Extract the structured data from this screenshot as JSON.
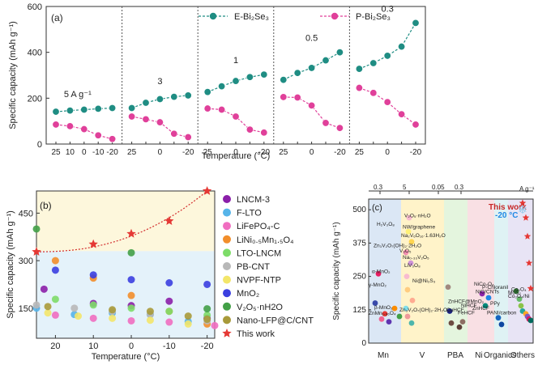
{
  "chart_data": [
    {
      "type": "scatter",
      "panel_label": "(a)",
      "ylabel": "Specific capacity  (mAh g⁻¹)",
      "xlabel": "Temperature  (°C)",
      "ylim": [
        0,
        600
      ],
      "yticks": [
        0,
        200,
        400,
        600
      ],
      "segments": [
        {
          "label": "5 A g⁻¹",
          "x": [
            "25",
            "10",
            "0",
            "-10",
            "-20"
          ],
          "e": [
            141,
            146,
            150,
            154,
            157
          ],
          "p": [
            85,
            78,
            65,
            38,
            22
          ]
        },
        {
          "label": "3",
          "x": [
            "25",
            "",
            "0",
            "",
            "-20"
          ],
          "e": [
            157,
            180,
            196,
            206,
            212
          ],
          "p": [
            120,
            108,
            95,
            45,
            30
          ]
        },
        {
          "label": "1",
          "x": [
            "25",
            "",
            "0",
            "",
            "-20"
          ],
          "e": [
            227,
            252,
            275,
            292,
            303
          ],
          "p": [
            155,
            150,
            120,
            63,
            50
          ]
        },
        {
          "label": "0.5",
          "x": [
            "25",
            "",
            "0",
            "",
            "-20"
          ],
          "e": [
            280,
            310,
            332,
            365,
            400
          ],
          "p": [
            205,
            203,
            168,
            92,
            70
          ]
        },
        {
          "label": "0.3",
          "x": [
            "25",
            "",
            "0",
            "",
            "-20"
          ],
          "e": [
            328,
            353,
            385,
            425,
            528
          ],
          "p": [
            245,
            223,
            183,
            130,
            85
          ]
        }
      ],
      "series": [
        {
          "name": "E-Bi₂Se₃",
          "color": "#1f8d83"
        },
        {
          "name": "P-Bi₂Se₃",
          "color": "#e0409a"
        }
      ]
    },
    {
      "type": "scatter",
      "panel_label": "(b)",
      "ylabel": "Specific capacity  (mAh g⁻¹)",
      "xlabel": "Temperature  (°C)",
      "xlim": [
        25,
        -22
      ],
      "xticks": [
        20,
        10,
        0,
        -10,
        -20
      ],
      "ylim": [
        55,
        520
      ],
      "yticks": [
        150,
        300,
        450
      ],
      "series": [
        {
          "name": "LNCM-3",
          "color": "#8b1fa9",
          "points": [
            [
              23,
              210
            ],
            [
              10,
              165
            ],
            [
              0,
              158
            ],
            [
              -10,
              172
            ],
            [
              -20,
              118
            ]
          ]
        },
        {
          "name": "F-LTO",
          "color": "#56b4e9",
          "points": [
            [
              25,
              150
            ],
            [
              15,
              130
            ],
            [
              5,
              135
            ],
            [
              -5,
              130
            ],
            [
              -15,
              108
            ]
          ]
        },
        {
          "name": "LiFePO₄-C",
          "color": "#f06ec0",
          "points": [
            [
              20,
              128
            ],
            [
              10,
              118
            ],
            [
              0,
              110
            ],
            [
              -10,
              106
            ],
            [
              -22,
              95
            ]
          ]
        },
        {
          "name": "LiNi₀.₅Mn₁.₅O₄",
          "color": "#f28e2b",
          "points": [
            [
              20,
              300
            ],
            [
              10,
              245
            ],
            [
              0,
              190
            ],
            [
              -10,
              140
            ],
            [
              -20,
              100
            ]
          ]
        },
        {
          "name": "LTO-LNCM",
          "color": "#7ddc68",
          "points": [
            [
              20,
              178
            ],
            [
              10,
              160
            ],
            [
              0,
              150
            ],
            [
              -10,
              140
            ],
            [
              -20,
              128
            ]
          ]
        },
        {
          "name": "PB-CNT",
          "color": "#b8b8b8",
          "points": [
            [
              25,
              160
            ],
            [
              15,
              150
            ],
            [
              5,
              140
            ],
            [
              -5,
              130
            ],
            [
              -20,
              110
            ]
          ]
        },
        {
          "name": "NVPF-NTP",
          "color": "#f3e66a",
          "points": [
            [
              22,
              135
            ],
            [
              14,
              125
            ],
            [
              5,
              118
            ],
            [
              -5,
              112
            ],
            [
              -15,
              100
            ]
          ]
        },
        {
          "name": "MnO₂",
          "color": "#3b3fe0",
          "points": [
            [
              20,
              270
            ],
            [
              10,
              255
            ],
            [
              0,
              240
            ],
            [
              -10,
              230
            ],
            [
              -20,
              225
            ]
          ]
        },
        {
          "name": "V₂O₅·nH2O",
          "color": "#43a047",
          "points": [
            [
              25,
              400
            ],
            [
              0,
              325
            ],
            [
              -20,
              148
            ]
          ]
        },
        {
          "name": "Nano-LFP@C/CNT",
          "color": "#a89a3a",
          "points": [
            [
              22,
              155
            ],
            [
              5,
              145
            ],
            [
              -5,
              140
            ],
            [
              -15,
              125
            ],
            [
              -20,
              115
            ]
          ]
        },
        {
          "name": "This work",
          "color": "#e53935",
          "points": [
            [
              25,
              328
            ],
            [
              10,
              352
            ],
            [
              0,
              385
            ],
            [
              -10,
              425
            ],
            [
              -20,
              520
            ]
          ]
        }
      ]
    },
    {
      "type": "scatter",
      "panel_label": "(c)",
      "ylabel": "Specific capacity (mAh g⁻¹)",
      "top_axis_unit": "A g⁻¹",
      "top_ticks": [
        "0.3",
        "5",
        "0.05",
        "0.3"
      ],
      "categories": [
        "Mn",
        "V",
        "PBA",
        "Ni",
        "Organics",
        "Others"
      ],
      "category_colors": [
        "#dbe7f5",
        "#fff3c9",
        "#e4f5de",
        "#f9e0e4",
        "#dff2f4",
        "#e8e4f5"
      ],
      "ylim": [
        0,
        540
      ],
      "yticks": [
        0,
        125,
        250,
        375,
        500
      ],
      "this_work_label": "This work",
      "this_work_temp": "-20 °C",
      "labels": [
        "V₂O₅·nH₂O",
        "H₂V₃O₈",
        "NW/graphene",
        "Na₂V₆O₁₆·1.63H₂O",
        "Zn₃V₂O₇(OH)₂·2H₂O",
        "V₂O₅",
        "Na₀.₃₃V₂O₅",
        "LiV₃O₈",
        "Ni@Ni₂S₃",
        "α-MnO₂",
        "γ-MnO₂",
        "β-MnO₂",
        "ZnMn₁.₈₆O₄",
        "Zn₃V₂O₇(OH)₂·2H₂O",
        "NiCo₂O₄",
        "P-Chloranil",
        "NiO/CNTs",
        "ZnHCF@MnO₂",
        "NiHCF",
        "ZnHCF",
        "CuHCF",
        "FeHCF",
        "PPy",
        "PANI/carbon",
        "Co₃O₄",
        "MoS₂",
        "Co₃O₄/Ni"
      ]
    }
  ]
}
